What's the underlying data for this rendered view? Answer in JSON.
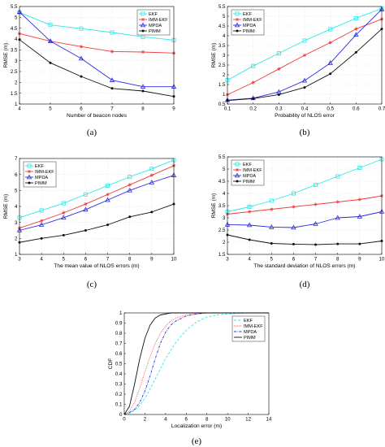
{
  "colors": {
    "EKF": "#2ee8e8",
    "IMM-EKF": "#f03a3a",
    "MPDA": "#2b2be0",
    "PIMM": "#111111"
  },
  "chart_data": [
    {
      "type": "line",
      "caption": "(a)",
      "xlabel": "Number of beacon nodes",
      "ylabel": "RMSE (m)",
      "xlim": [
        4,
        9
      ],
      "ylim": [
        1,
        5.5
      ],
      "xticks": [
        4,
        5,
        6,
        7,
        8,
        9
      ],
      "yticks": [
        1,
        1.5,
        2,
        2.5,
        3,
        3.5,
        4,
        4.5,
        5,
        5.5
      ],
      "x": [
        4,
        5,
        6,
        7,
        8,
        9
      ],
      "legend_position": "top-right",
      "grid": true,
      "series": [
        {
          "name": "EKF",
          "marker": "square",
          "values": [
            5.22,
            4.65,
            4.48,
            4.3,
            4.1,
            3.95
          ]
        },
        {
          "name": "IMM-EKF",
          "marker": "star",
          "values": [
            4.25,
            3.9,
            3.65,
            3.42,
            3.4,
            3.35
          ]
        },
        {
          "name": "MPDA",
          "marker": "triangle",
          "values": [
            5.25,
            3.9,
            3.1,
            2.1,
            1.8,
            1.8
          ]
        },
        {
          "name": "PIMM",
          "marker": "dot",
          "values": [
            3.97,
            2.9,
            2.27,
            1.72,
            1.6,
            1.35
          ]
        }
      ]
    },
    {
      "type": "line",
      "caption": "(b)",
      "xlabel": "Probability of NLOS error",
      "ylabel": "RMSE (m)",
      "xlim": [
        0.1,
        0.7
      ],
      "ylim": [
        0.5,
        5.5
      ],
      "xticks": [
        0.1,
        0.2,
        0.3,
        0.4,
        0.5,
        0.6,
        0.7
      ],
      "yticks": [
        0.5,
        1,
        1.5,
        2,
        2.5,
        3,
        3.5,
        4,
        4.5,
        5,
        5.5
      ],
      "x": [
        0.1,
        0.2,
        0.3,
        0.4,
        0.5,
        0.6,
        0.7
      ],
      "legend_position": "top-left",
      "grid": true,
      "series": [
        {
          "name": "EKF",
          "marker": "square",
          "values": [
            1.72,
            2.45,
            3.1,
            3.75,
            4.33,
            4.9,
            5.4
          ]
        },
        {
          "name": "IMM-EKF",
          "marker": "star",
          "values": [
            0.98,
            1.6,
            2.3,
            3.0,
            3.65,
            4.35,
            4.85
          ]
        },
        {
          "name": "MPDA",
          "marker": "triangle",
          "values": [
            0.7,
            0.8,
            1.12,
            1.7,
            2.6,
            4.05,
            5.35
          ]
        },
        {
          "name": "PIMM",
          "marker": "dot",
          "values": [
            0.68,
            0.78,
            0.98,
            1.35,
            2.05,
            3.15,
            4.35
          ]
        }
      ]
    },
    {
      "type": "line",
      "caption": "(c)",
      "xlabel": "The mean value of NLOS errors (m)",
      "ylabel": "RMSE (m)",
      "xlim": [
        3,
        10
      ],
      "ylim": [
        1,
        7
      ],
      "xticks": [
        3,
        4,
        5,
        6,
        7,
        8,
        9,
        10
      ],
      "yticks": [
        1,
        2,
        3,
        4,
        5,
        6,
        7
      ],
      "x": [
        3,
        4,
        5,
        6,
        7,
        8,
        9,
        10
      ],
      "legend_position": "top-left",
      "grid": true,
      "series": [
        {
          "name": "EKF",
          "marker": "square",
          "values": [
            3.3,
            3.75,
            4.2,
            4.75,
            5.3,
            5.85,
            6.35,
            6.9
          ]
        },
        {
          "name": "IMM-EKF",
          "marker": "star",
          "values": [
            2.65,
            3.1,
            3.6,
            4.15,
            4.75,
            5.35,
            5.95,
            6.55
          ]
        },
        {
          "name": "MPDA",
          "marker": "triangle",
          "values": [
            2.5,
            2.85,
            3.3,
            3.8,
            4.4,
            5.0,
            5.5,
            5.95
          ]
        },
        {
          "name": "PIMM",
          "marker": "dot",
          "values": [
            1.75,
            2.0,
            2.2,
            2.5,
            2.85,
            3.35,
            3.65,
            4.15
          ]
        }
      ]
    },
    {
      "type": "line",
      "caption": "(d)",
      "xlabel": "The standard deviation of NLOS errors (m)",
      "ylabel": "RMSE (m)",
      "xlim": [
        3,
        10
      ],
      "ylim": [
        1.5,
        5.5
      ],
      "xticks": [
        3,
        4,
        5,
        6,
        7,
        8,
        9,
        10
      ],
      "yticks": [
        1.5,
        2,
        2.5,
        3,
        3.5,
        4,
        4.5,
        5,
        5.5
      ],
      "x": [
        3,
        4,
        5,
        6,
        7,
        8,
        9,
        10
      ],
      "legend_position": "top-left",
      "grid": true,
      "series": [
        {
          "name": "EKF",
          "marker": "square",
          "values": [
            3.25,
            3.45,
            3.7,
            4.0,
            4.35,
            4.7,
            5.05,
            5.4
          ]
        },
        {
          "name": "IMM-EKF",
          "marker": "star",
          "values": [
            3.15,
            3.25,
            3.35,
            3.45,
            3.55,
            3.65,
            3.75,
            3.9
          ]
        },
        {
          "name": "MPDA",
          "marker": "triangle",
          "values": [
            2.72,
            2.7,
            2.62,
            2.6,
            2.75,
            3.0,
            3.05,
            3.25
          ]
        },
        {
          "name": "PIMM",
          "marker": "dot",
          "values": [
            2.3,
            2.1,
            1.95,
            1.92,
            1.9,
            1.93,
            1.93,
            2.05
          ]
        }
      ]
    },
    {
      "type": "line",
      "caption": "(e)",
      "xlabel": "Localization error (m)",
      "ylabel": "CDF",
      "xlim": [
        0,
        14
      ],
      "ylim": [
        0,
        1
      ],
      "xticks": [
        0,
        2,
        4,
        6,
        8,
        10,
        12,
        14
      ],
      "yticks": [
        0,
        0.1,
        0.2,
        0.3,
        0.4,
        0.5,
        0.6,
        0.7,
        0.8,
        0.9,
        1
      ],
      "x": [
        0,
        0.5,
        1,
        1.5,
        2,
        2.5,
        3,
        3.5,
        4,
        4.5,
        5,
        6,
        7,
        8,
        9,
        10,
        12,
        14
      ],
      "legend_position": "top-right",
      "grid": false,
      "series": [
        {
          "name": "EKF",
          "line": "dash",
          "values": [
            0,
            0.01,
            0.04,
            0.09,
            0.16,
            0.25,
            0.35,
            0.45,
            0.55,
            0.63,
            0.71,
            0.83,
            0.91,
            0.96,
            0.98,
            0.99,
            1.0,
            1.0
          ]
        },
        {
          "name": "IMM-EKF",
          "line": "dot",
          "values": [
            0,
            0.03,
            0.12,
            0.26,
            0.42,
            0.57,
            0.7,
            0.8,
            0.87,
            0.92,
            0.95,
            0.98,
            0.99,
            1.0,
            1.0,
            1.0,
            1.0,
            1.0
          ]
        },
        {
          "name": "MPDA",
          "line": "dashdot",
          "values": [
            0,
            0.02,
            0.05,
            0.12,
            0.23,
            0.38,
            0.55,
            0.7,
            0.81,
            0.88,
            0.92,
            0.97,
            0.99,
            1.0,
            1.0,
            1.0,
            1.0,
            1.0
          ]
        },
        {
          "name": "PIMM",
          "line": "solid",
          "values": [
            0,
            0.08,
            0.3,
            0.55,
            0.75,
            0.88,
            0.95,
            0.98,
            0.99,
            1.0,
            1.0,
            1.0,
            1.0,
            1.0,
            1.0,
            1.0,
            1.0,
            1.0
          ]
        }
      ]
    }
  ]
}
